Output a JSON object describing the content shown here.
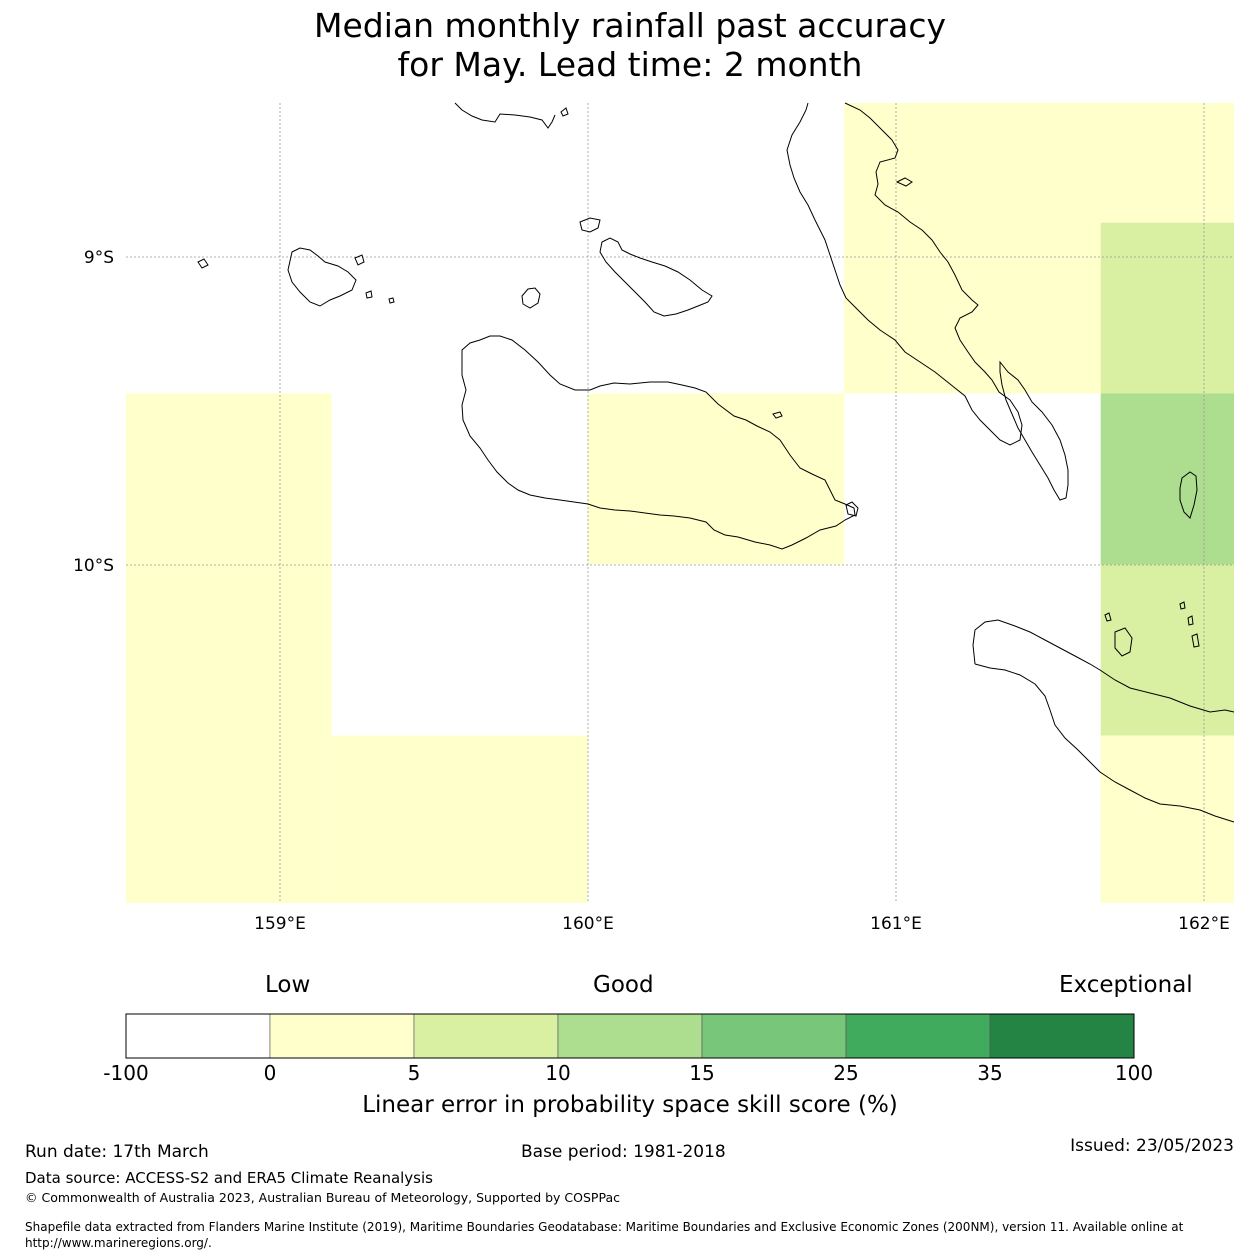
{
  "title": {
    "line1": "Median monthly rainfall past accuracy",
    "line2": "for May. Lead time: 2 month"
  },
  "map": {
    "lat_labels": [
      "9°S",
      "10°S"
    ],
    "lon_labels": [
      "159°E",
      "160°E",
      "161°E",
      "162°E"
    ],
    "extent": {
      "lon_min": 158.5,
      "lon_max": 162.1,
      "lat_min": -11.1,
      "lat_max": -8.5
    },
    "skill_cells": [
      {
        "lon": [
          160.833,
          162.1
        ],
        "lat": [
          -8.5,
          -8.889
        ],
        "category": "0-5"
      },
      {
        "lon": [
          160.833,
          161.667
        ],
        "lat": [
          -8.889,
          -9.444
        ],
        "category": "0-5"
      },
      {
        "lon": [
          161.667,
          162.1
        ],
        "lat": [
          -8.889,
          -9.444
        ],
        "category": "5-10"
      },
      {
        "lon": [
          158.5,
          159.167
        ],
        "lat": [
          -9.444,
          -11.1
        ],
        "category": "0-5"
      },
      {
        "lon": [
          160.0,
          160.833
        ],
        "lat": [
          -9.444,
          -10.0
        ],
        "category": "0-5"
      },
      {
        "lon": [
          161.667,
          162.1
        ],
        "lat": [
          -9.444,
          -10.0
        ],
        "category": "10-15"
      },
      {
        "lon": [
          161.667,
          162.1
        ],
        "lat": [
          -10.0,
          -10.556
        ],
        "category": "5-10"
      },
      {
        "lon": [
          159.167,
          160.0
        ],
        "lat": [
          -10.556,
          -11.1
        ],
        "category": "0-5"
      },
      {
        "lon": [
          161.667,
          162.1
        ],
        "lat": [
          -10.556,
          -11.1
        ],
        "category": "0-5"
      }
    ]
  },
  "colorbar": {
    "categories": [
      "Low",
      "Good",
      "Exceptional"
    ],
    "ticks": [
      "-100",
      "0",
      "5",
      "10",
      "15",
      "25",
      "35",
      "100"
    ],
    "colors": [
      "#ffffff",
      "#ffffcc",
      "#d9f0a3",
      "#addd8e",
      "#78c679",
      "#41ab5d",
      "#238443"
    ],
    "category_keys": [
      "-100-0",
      "0-5",
      "5-10",
      "10-15",
      "15-25",
      "25-35",
      "35-100"
    ],
    "label": "Linear error in probability space skill score (%)"
  },
  "footer": {
    "run_date": "Run date: 17th March",
    "base_period": "Base period: 1981-2018",
    "issued": "Issued: 23/05/2023",
    "data_source": "Data source: ACCESS-S2 and ERA5 Climate Reanalysis",
    "copyright": "© Commonwealth of Australia 2023, Australian Bureau of Meteorology, Supported by COSPPac",
    "shapefile_line1": "Shapefile data extracted from Flanders Marine Institute (2019), Maritime Boundaries Geodatabase: Maritime Boundaries and Exclusive Economic Zones (200NM), version 11. Available online at",
    "shapefile_line2": "http://www.marineregions.org/."
  }
}
